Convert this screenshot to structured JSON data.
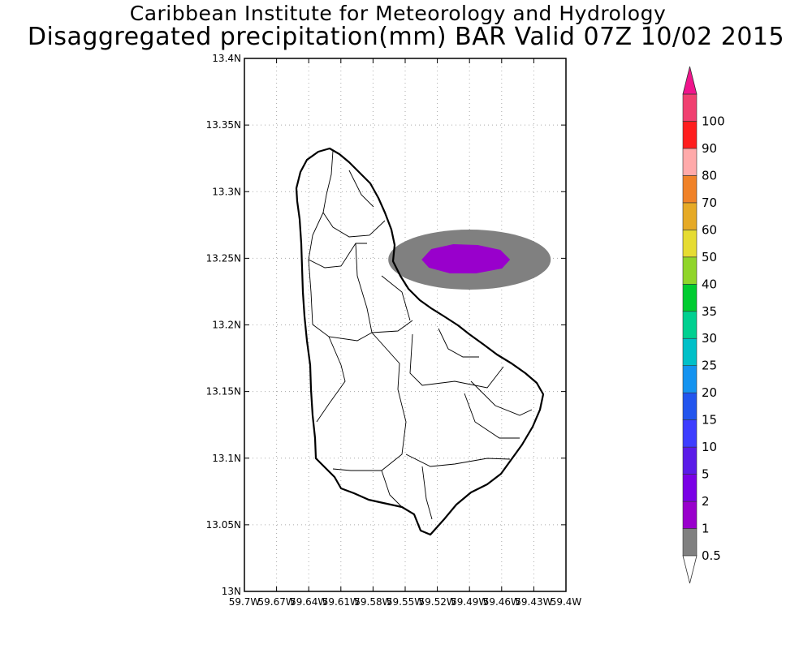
{
  "title": {
    "line1": "Caribbean Institute for Meteorology and Hydrology",
    "line2": "Disaggregated precipitation(mm) BAR Valid 07Z 10/02 2015"
  },
  "map": {
    "region": "Barbados",
    "lon_range": [
      -59.7,
      -59.4
    ],
    "lat_range": [
      13.0,
      13.4
    ],
    "grid": true,
    "lat_ticks": [
      "13N",
      "13.05N",
      "13.1N",
      "13.15N",
      "13.2N",
      "13.25N",
      "13.3N",
      "13.35N",
      "13.4N"
    ],
    "lon_ticks": [
      "59.7W",
      "59.67W",
      "59.64W",
      "59.61W",
      "59.58W",
      "59.55W",
      "59.52W",
      "59.49W",
      "59.46W",
      "59.43W",
      "59.4W"
    ],
    "precip_cell": {
      "center_lon": -59.49,
      "center_lat": 13.249,
      "outer_level": 0.5,
      "outer_color": "#808080",
      "inner_level": 1,
      "inner_color": "#9900cc"
    }
  },
  "colorbar": {
    "levels": [
      "0.5",
      "1",
      "2",
      "5",
      "10",
      "15",
      "20",
      "25",
      "30",
      "35",
      "40",
      "50",
      "60",
      "70",
      "80",
      "90",
      "100"
    ],
    "colors": [
      "#808080",
      "#9900cc",
      "#7a00e6",
      "#5a1be8",
      "#3d3dff",
      "#2255ee",
      "#1493f0",
      "#00c0c8",
      "#00d090",
      "#00cc30",
      "#90d52a",
      "#e6dc32",
      "#e6aa26",
      "#f08228",
      "#ffaaaa",
      "#ff1e1e",
      "#f04070"
    ],
    "under_color": "#ffffff",
    "over_color": "#f0148c"
  }
}
